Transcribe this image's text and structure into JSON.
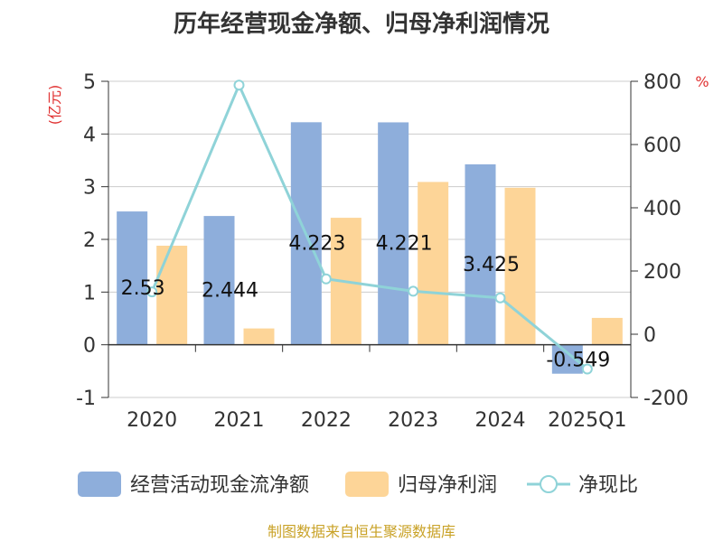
{
  "chart_data": {
    "type": "bar",
    "title": "历年经营现金净额、归母净利润情况",
    "categories": [
      "2020",
      "2021",
      "2022",
      "2023",
      "2024",
      "2025Q1"
    ],
    "y_left": {
      "unit": "(亿元)",
      "min": -1,
      "max": 5,
      "ticks": [
        "5",
        "4",
        "3",
        "2",
        "1",
        "0",
        "-1"
      ]
    },
    "y_right": {
      "unit": "%",
      "min": -200,
      "max": 800,
      "ticks": [
        "800",
        "600",
        "400",
        "200",
        "0",
        "-200"
      ]
    },
    "series": [
      {
        "name": "经营活动现金流净额",
        "type": "bar",
        "axis": "left",
        "color": "#8eaedb",
        "values": [
          2.53,
          2.444,
          4.223,
          4.221,
          3.425,
          -0.549
        ],
        "labels": [
          "2.53",
          "2.444",
          "4.223",
          "4.221",
          "3.425",
          "-0.549"
        ]
      },
      {
        "name": "归母净利润",
        "type": "bar",
        "axis": "left",
        "color": "#fdd598",
        "values": [
          1.88,
          0.31,
          2.41,
          3.09,
          2.98,
          0.51
        ]
      },
      {
        "name": "净现比",
        "type": "line",
        "axis": "right",
        "color": "#8fd3d8",
        "values": [
          134,
          788,
          175,
          136,
          115,
          -110
        ]
      }
    ],
    "legend": "bottom",
    "grid": true,
    "source": "制图数据来自恒生聚源数据库"
  }
}
